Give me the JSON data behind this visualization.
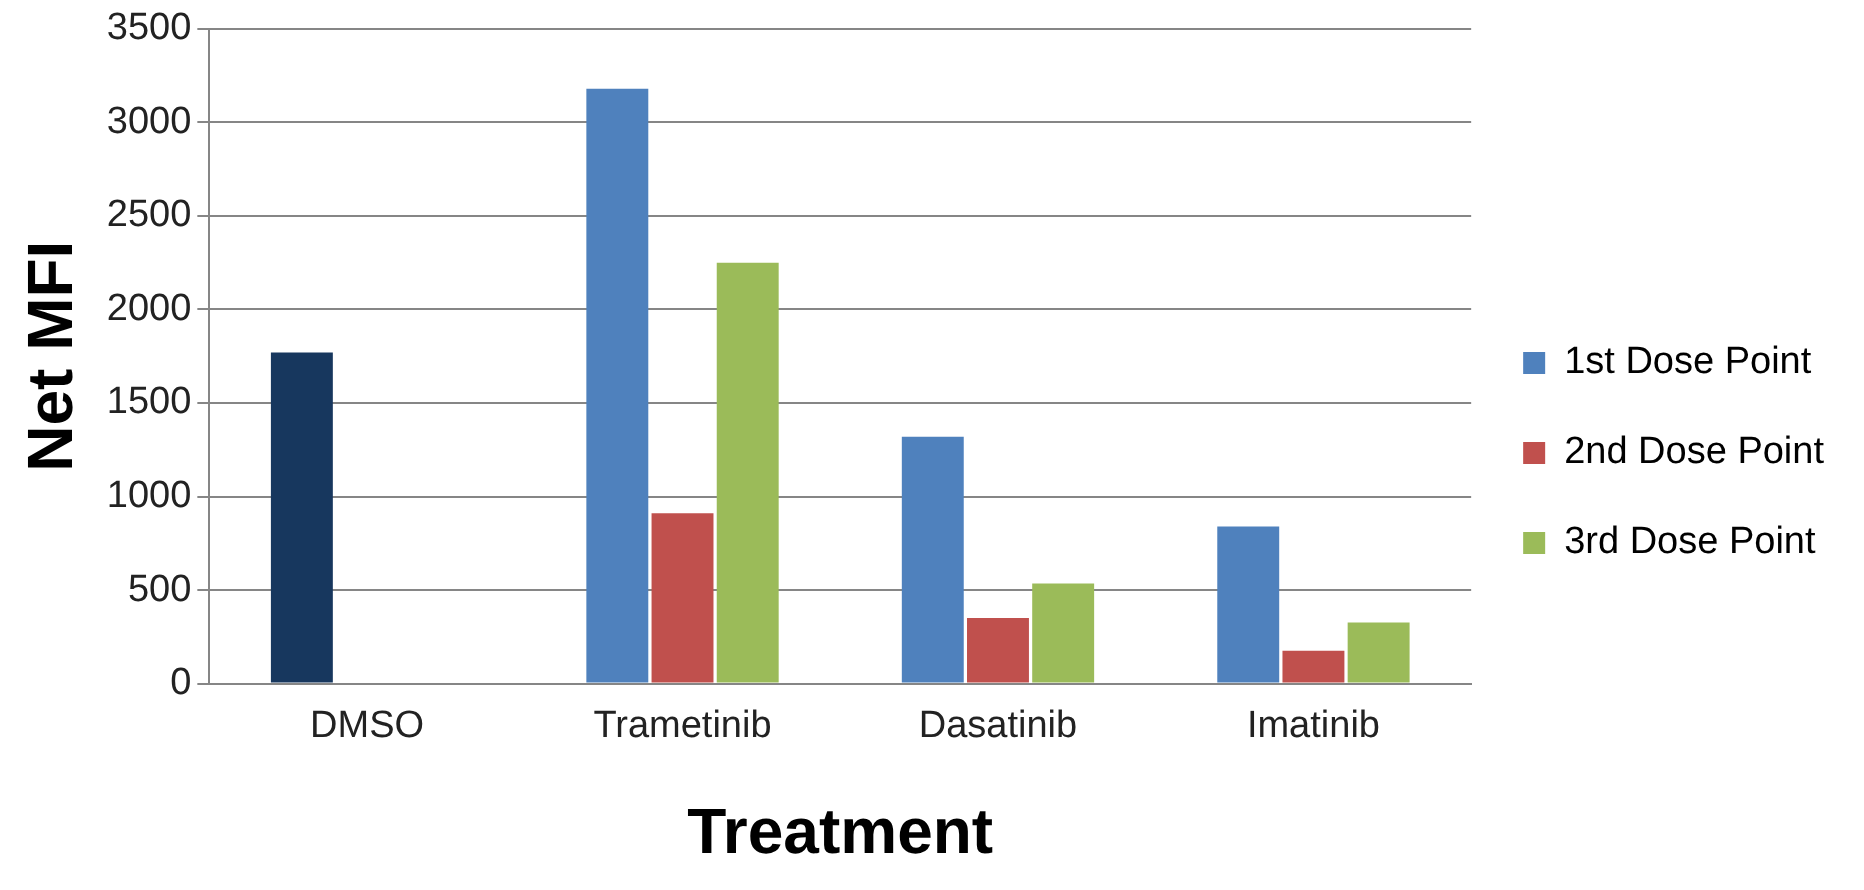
{
  "chart_data": {
    "type": "bar",
    "xlabel": "Treatment",
    "ylabel": "Net MFI",
    "categories": [
      "DMSO",
      "Trametinib",
      "Dasatinib",
      "Imatinib"
    ],
    "series": [
      {
        "name": "1st Dose Point",
        "color": "#4f81bd",
        "colors": [
          "#17375e",
          "#4f81bd",
          "#4f81bd",
          "#4f81bd"
        ],
        "values": [
          1770,
          3180,
          1320,
          840
        ]
      },
      {
        "name": "2nd Dose Point",
        "color": "#c0504d",
        "values": [
          null,
          910,
          350,
          175
        ]
      },
      {
        "name": "3rd Dose Point",
        "color": "#9bbb59",
        "values": [
          null,
          2250,
          535,
          327
        ]
      }
    ],
    "ylim": [
      0,
      3500
    ],
    "yticks": [
      0,
      500,
      1000,
      1500,
      2000,
      2500,
      3000,
      3500
    ],
    "grid": "y",
    "legend": "right"
  }
}
